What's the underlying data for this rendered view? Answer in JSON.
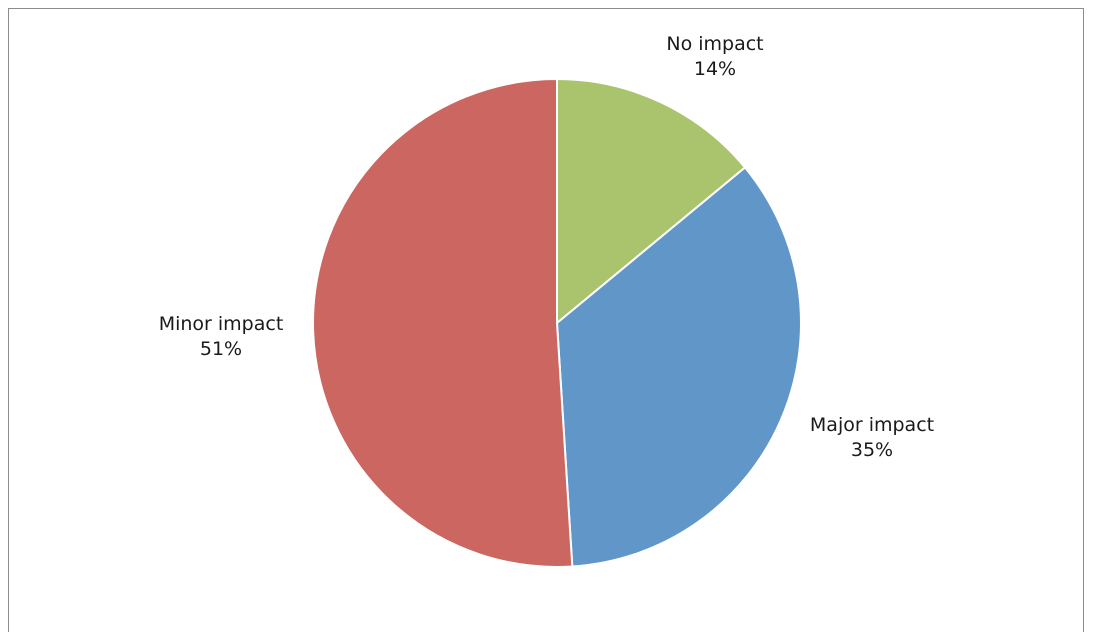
{
  "chart_data": {
    "type": "pie",
    "title": "",
    "start_angle_deg": 0,
    "direction": "clockwise",
    "slices": [
      {
        "label": "No impact",
        "value": 14,
        "value_label": "14%",
        "color": "#a9c46c"
      },
      {
        "label": "Major impact",
        "value": 35,
        "value_label": "35%",
        "color": "#6196c9"
      },
      {
        "label": "Minor impact",
        "value": 51,
        "value_label": "51%",
        "color": "#cc6660"
      }
    ],
    "legend": "none",
    "slice_border_color": "#ffffff"
  }
}
